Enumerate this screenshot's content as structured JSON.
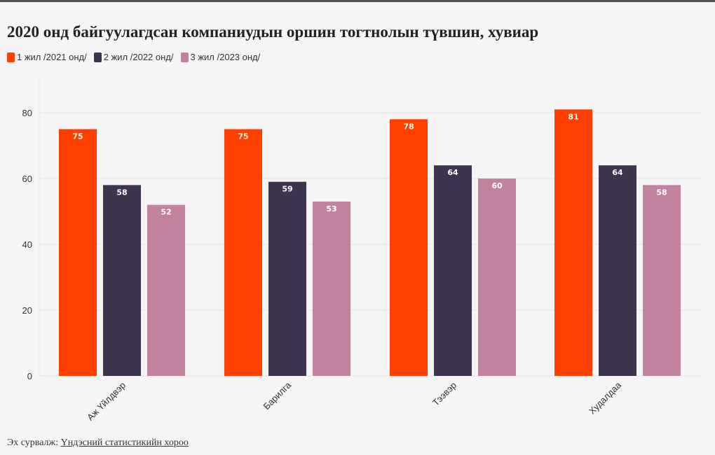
{
  "title": "2020 онд байгуулагдсан компаниудын оршин тогтнолын түвшин, хувиар",
  "source": {
    "label": "Эх сурвалж:",
    "link_text": "Үндэсний статистикийн хороо"
  },
  "colors": {
    "series1": "#ff3f00",
    "series2": "#3e344f",
    "series3": "#c2829f",
    "grid": "#e3e3e3",
    "axis_text": "#333333"
  },
  "chart_data": {
    "type": "bar",
    "title": "2020 онд байгуулагдсан компаниудын оршин тогтнолын түвшин, хувиар",
    "xlabel": "",
    "ylabel": "",
    "categories": [
      "Аж Үйлдвэр",
      "Барилга",
      "Тээвэр",
      "Худалдаа"
    ],
    "series": [
      {
        "name": "1 жил /2021 онд/",
        "values": [
          75,
          75,
          78,
          81
        ]
      },
      {
        "name": "2 жил /2022 онд/",
        "values": [
          58,
          59,
          64,
          64
        ]
      },
      {
        "name": "3 жил /2023 онд/",
        "values": [
          52,
          53,
          60,
          58
        ]
      }
    ],
    "yticks": [
      0,
      20,
      40,
      60,
      80
    ],
    "ylim": [
      0,
      90
    ],
    "grid": true,
    "legend_position": "top-left",
    "data_labels": true
  }
}
